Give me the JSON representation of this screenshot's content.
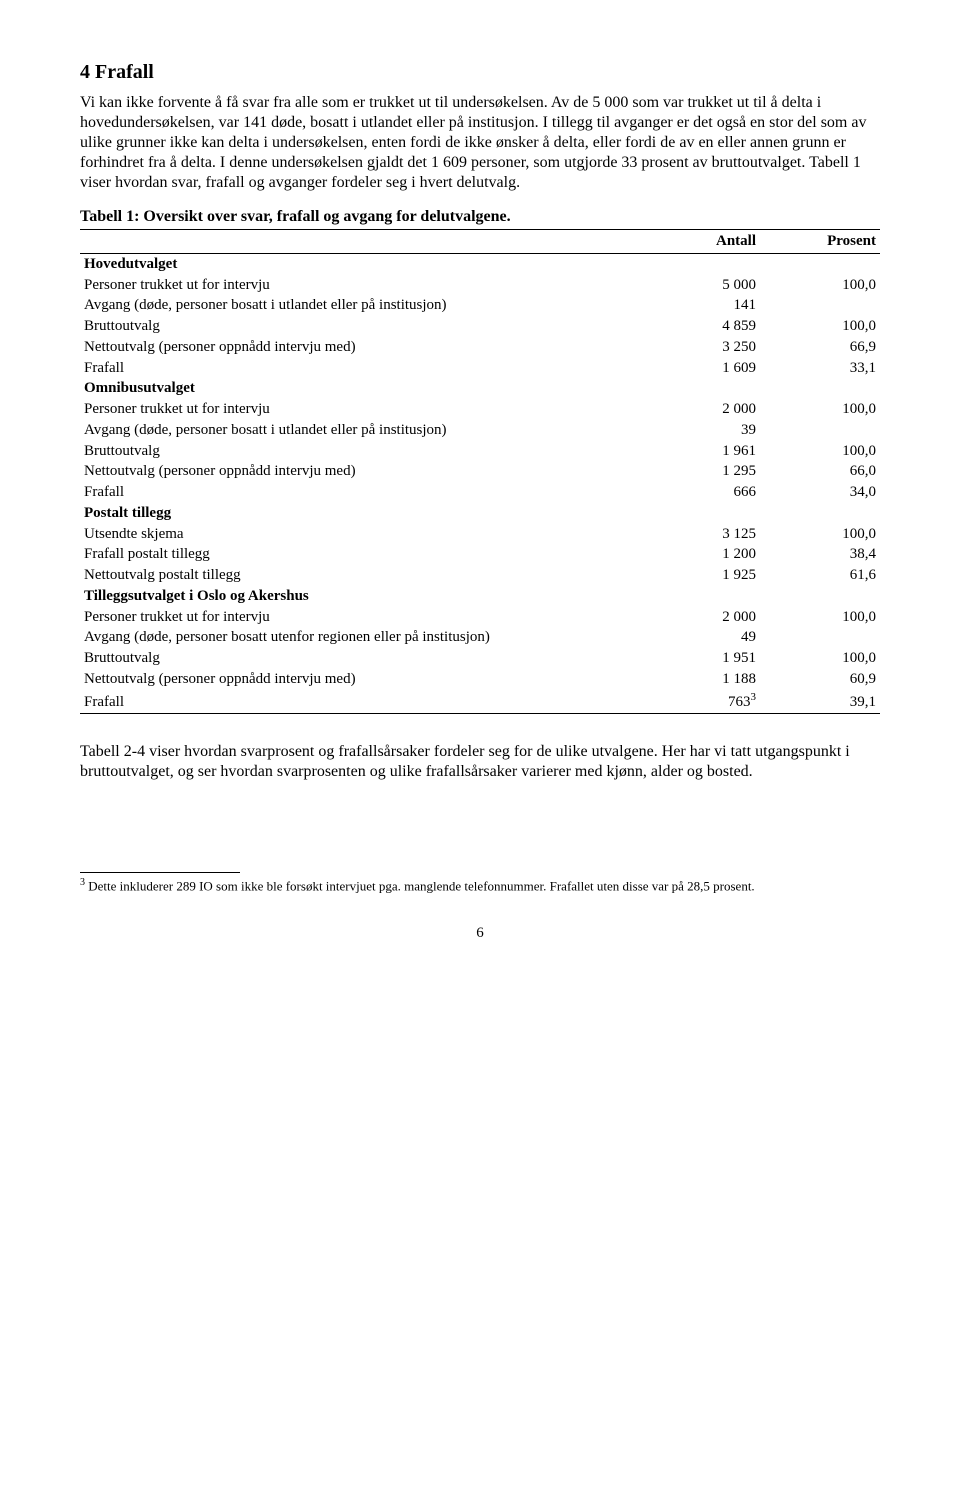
{
  "heading": "4   Frafall",
  "para1": "Vi kan ikke forvente å få svar fra alle som er trukket ut til undersøkelsen. Av de 5 000 som var trukket ut til å delta i hovedundersøkelsen, var 141 døde, bosatt i utlandet eller på institusjon. I tillegg til avganger er det også en stor del som av ulike grunner ikke kan delta i undersøkelsen, enten fordi de ikke ønsker å delta, eller fordi de av en eller annen grunn er forhindret fra å delta. I denne undersøkelsen gjaldt det 1 609 personer, som utgjorde 33 prosent av bruttoutvalget. Tabell 1 viser hvordan svar, frafall og avganger fordeler seg i hvert delutvalg.",
  "table": {
    "title": "Tabell 1: Oversikt over svar, frafall og avgang for delutvalgene.",
    "headers": {
      "c1": "",
      "c2": "Antall",
      "c3": "Prosent"
    },
    "groups": [
      {
        "name": "Hovedutvalget",
        "rows": [
          {
            "label": "Personer trukket ut for intervju",
            "n": "5 000",
            "p": "100,0"
          },
          {
            "label": "Avgang (døde, personer bosatt i utlandet eller på institusjon)",
            "n": "141",
            "p": ""
          },
          {
            "label": "Bruttoutvalg",
            "n": "4 859",
            "p": "100,0"
          },
          {
            "label": "Nettoutvalg (personer oppnådd intervju med)",
            "n": "3 250",
            "p": "66,9"
          },
          {
            "label": "Frafall",
            "n": "1 609",
            "p": "33,1"
          }
        ]
      },
      {
        "name": "Omnibusutvalget",
        "rows": [
          {
            "label": "Personer trukket ut for intervju",
            "n": "2 000",
            "p": "100,0"
          },
          {
            "label": "Avgang (døde, personer bosatt i utlandet eller på institusjon)",
            "n": "39",
            "p": ""
          },
          {
            "label": "Bruttoutvalg",
            "n": "1 961",
            "p": "100,0"
          },
          {
            "label": "Nettoutvalg (personer oppnådd intervju med)",
            "n": "1 295",
            "p": "66,0"
          },
          {
            "label": "Frafall",
            "n": "666",
            "p": "34,0"
          }
        ]
      },
      {
        "name": "Postalt tillegg",
        "rows": [
          {
            "label": "Utsendte skjema",
            "n": "3 125",
            "p": "100,0"
          },
          {
            "label": "Frafall postalt tillegg",
            "n": "1 200",
            "p": "38,4"
          },
          {
            "label": "Nettoutvalg postalt tillegg",
            "n": "1 925",
            "p": "61,6"
          }
        ]
      },
      {
        "name": "Tilleggsutvalget i Oslo og Akershus",
        "rows": [
          {
            "label": "Personer trukket ut for intervju",
            "n": "2 000",
            "p": "100,0"
          },
          {
            "label": "Avgang (døde, personer bosatt utenfor regionen eller på institusjon)",
            "n": "49",
            "p": ""
          },
          {
            "label": "Bruttoutvalg",
            "n": "1 951",
            "p": "100,0"
          },
          {
            "label": "Nettoutvalg (personer oppnådd intervju med)",
            "n": "1 188",
            "p": "60,9"
          },
          {
            "label": "Frafall",
            "n": "763",
            "p": "39,1",
            "sup": "3"
          }
        ]
      }
    ]
  },
  "para2": "Tabell 2-4 viser hvordan svarprosent og frafallsårsaker fordeler seg for de ulike utvalgene. Her har vi tatt utgangspunkt i bruttoutvalget, og ser hvordan svarprosenten og ulike frafallsårsaker varierer med kjønn, alder og bosted.",
  "footnote": {
    "num": "3",
    "text": " Dette inkluderer 289 IO som ikke ble forsøkt intervjuet pga. manglende telefonnummer. Frafallet uten disse var på 28,5 prosent."
  },
  "page_number": "6"
}
